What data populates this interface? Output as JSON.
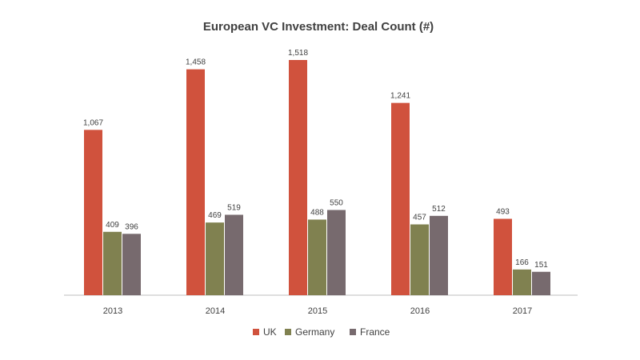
{
  "chart_data": {
    "type": "bar",
    "title": "European VC Investment: Deal Count (#)",
    "categories": [
      "2013",
      "2014",
      "2015",
      "2016",
      "2017"
    ],
    "series": [
      {
        "name": "UK",
        "color": "#d0523d",
        "values": [
          1067,
          1458,
          1518,
          1241,
          493
        ],
        "labels": [
          "1,067",
          "1,458",
          "1,518",
          "1,241",
          "493"
        ]
      },
      {
        "name": "Germany",
        "color": "#808150",
        "values": [
          409,
          469,
          488,
          457,
          166
        ],
        "labels": [
          "409",
          "469",
          "488",
          "457",
          "166"
        ]
      },
      {
        "name": "France",
        "color": "#776a6e",
        "values": [
          396,
          519,
          550,
          512,
          151
        ],
        "labels": [
          "396",
          "519",
          "550",
          "512",
          "151"
        ]
      }
    ],
    "ylim": [
      0,
      1518
    ],
    "grid": false,
    "legend_position": "bottom"
  }
}
